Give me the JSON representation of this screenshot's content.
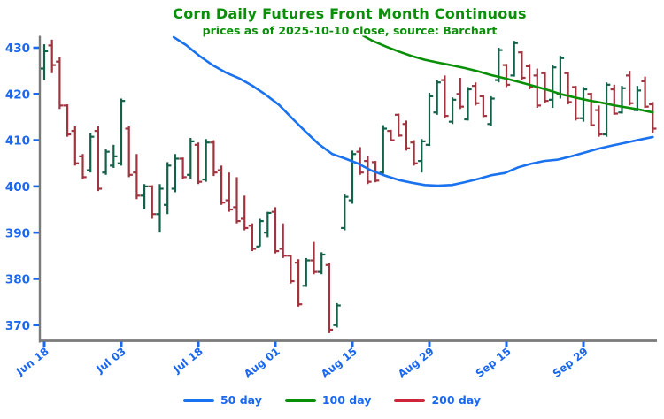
{
  "header": {
    "title": "Corn Daily Futures Front Month Continuous",
    "subtitle": "prices as of 2025-10-10 close, source: Barchart"
  },
  "chart_data": {
    "type": "ohlc-bar",
    "title": "Corn Daily Futures Front Month Continuous",
    "subtitle": "prices as of 2025-10-10 close, source: Barchart",
    "xlabel": "",
    "ylabel": "",
    "ylim": [
      366.5,
      432.8
    ],
    "grid": false,
    "legend_position": "bottom-center",
    "colors": {
      "up_bar": "#146149",
      "down_bar": "#a03540",
      "ma50": "#1a72ee",
      "ma100": "#0a9008",
      "ma200": "#d02438",
      "axis_label": "#1a68f0",
      "tick_mark": "#1a68f0",
      "spine": "#7a7a7a",
      "title": "#0a9008",
      "background": "#ffffff"
    },
    "y_ticks": [
      370,
      380,
      390,
      400,
      410,
      420,
      430
    ],
    "x_ticks": [
      {
        "label": "Jun 18",
        "index": 0
      },
      {
        "label": "Jul 03",
        "index": 10
      },
      {
        "label": "Jul 18",
        "index": 20
      },
      {
        "label": "Aug 01",
        "index": 30
      },
      {
        "label": "Aug 15",
        "index": 40
      },
      {
        "label": "Aug 29",
        "index": 50
      },
      {
        "label": "Sep 15",
        "index": 60
      },
      {
        "label": "Sep 29",
        "index": 70
      }
    ],
    "bars_format": [
      "date",
      "open",
      "high",
      "low",
      "close"
    ],
    "bars": [
      [
        "Jun 18",
        425.5,
        430.75,
        423,
        429.25
      ],
      [
        "Jun 20",
        430.5,
        431.75,
        424.5,
        426.25
      ],
      [
        "Jun 23",
        427,
        428,
        416.75,
        417.5
      ],
      [
        "Jun 24",
        417.5,
        417.75,
        410.75,
        411.25
      ],
      [
        "Jun 25",
        412,
        413,
        404.5,
        405
      ],
      [
        "Jun 26",
        406.5,
        407,
        401.5,
        402
      ],
      [
        "Jun 27",
        403.5,
        411.5,
        403,
        410.75
      ],
      [
        "Jun 30",
        412,
        413,
        399,
        399.5
      ],
      [
        "Jul 01",
        403,
        408,
        402.5,
        407.5
      ],
      [
        "Jul 02",
        404.5,
        409,
        404,
        406.5
      ],
      [
        "Jul 03",
        405,
        419,
        404.5,
        418.5
      ],
      [
        "Jul 07",
        412.5,
        413,
        402,
        402.5
      ],
      [
        "Jul 08",
        403,
        407,
        397.25,
        398
      ],
      [
        "Jul 09",
        398,
        400.5,
        395,
        400
      ],
      [
        "Jul 10",
        400,
        400.25,
        393,
        394
      ],
      [
        "Jul 11",
        394,
        400.5,
        390,
        399.5
      ],
      [
        "Jul 14",
        396,
        405.25,
        394,
        404.5
      ],
      [
        "Jul 15",
        399.5,
        407,
        398.75,
        406
      ],
      [
        "Jul 16",
        406,
        406.25,
        401.5,
        402
      ],
      [
        "Jul 17",
        402.5,
        410.5,
        401.5,
        409.75
      ],
      [
        "Jul 18",
        409,
        409.5,
        400.5,
        401
      ],
      [
        "Jul 21",
        401.5,
        410.25,
        401,
        409.5
      ],
      [
        "Jul 22",
        409.5,
        410,
        402.25,
        403
      ],
      [
        "Jul 23",
        403.5,
        404.5,
        396,
        396.5
      ],
      [
        "Jul 24",
        397,
        403,
        394.5,
        395
      ],
      [
        "Jul 25",
        395.5,
        402,
        392,
        392.5
      ],
      [
        "Jul 28",
        393,
        398,
        390.5,
        391
      ],
      [
        "Jul 29",
        391.5,
        392,
        386,
        386.5
      ],
      [
        "Jul 30",
        387,
        393,
        387,
        392.5
      ],
      [
        "Jul 31",
        390,
        394.5,
        389,
        394.25
      ],
      [
        "Aug 01",
        394.5,
        395.5,
        385.5,
        386
      ],
      [
        "Aug 04",
        386.5,
        392,
        384.5,
        385
      ],
      [
        "Aug 05",
        385,
        385.25,
        379,
        379.5
      ],
      [
        "Aug 06",
        383.5,
        384.25,
        374,
        374.5
      ],
      [
        "Aug 07",
        378.5,
        384.5,
        378.25,
        384
      ],
      [
        "Aug 08",
        384,
        388,
        381,
        381.5
      ],
      [
        "Aug 11",
        381.5,
        385.75,
        381,
        385.25
      ],
      [
        "Aug 12",
        383,
        383.5,
        368.25,
        369
      ],
      [
        "Aug 13",
        370,
        374.75,
        369.5,
        374.25
      ],
      [
        "Aug 14",
        391,
        398.25,
        390.5,
        397.75
      ],
      [
        "Aug 15",
        397,
        407.75,
        396.25,
        407
      ],
      [
        "Aug 18",
        407.5,
        408.5,
        402.5,
        403
      ],
      [
        "Aug 19",
        405.5,
        406.5,
        400.5,
        401
      ],
      [
        "Aug 20",
        405.25,
        405.5,
        400.9,
        401.25
      ],
      [
        "Aug 21",
        403,
        413.25,
        402.75,
        412.5
      ],
      [
        "Aug 22",
        412,
        412.25,
        409.75,
        410
      ],
      [
        "Aug 25",
        415.5,
        415.75,
        410.75,
        411
      ],
      [
        "Aug 26",
        413.5,
        414.25,
        407.75,
        408.25
      ],
      [
        "Aug 27",
        409.5,
        410,
        404.5,
        405
      ],
      [
        "Aug 28",
        405.5,
        410.25,
        403,
        409.75
      ],
      [
        "Aug 29",
        409,
        420.25,
        408.75,
        419.5
      ],
      [
        "Sep 02",
        416,
        423,
        415.5,
        422.5
      ],
      [
        "Sep 03",
        423,
        424,
        414.75,
        415.25
      ],
      [
        "Sep 04",
        414,
        419.25,
        413.5,
        418.75
      ],
      [
        "Sep 05",
        420,
        423.5,
        416.75,
        417.25
      ],
      [
        "Sep 08",
        414.5,
        421.5,
        414.25,
        421
      ],
      [
        "Sep 09",
        421.75,
        422.5,
        417.5,
        418
      ],
      [
        "Sep 10",
        419.5,
        419.75,
        415,
        415.25
      ],
      [
        "Sep 11",
        413.5,
        419.5,
        413,
        419
      ],
      [
        "Sep 12",
        423,
        430,
        422.5,
        429.5
      ],
      [
        "Sep 15",
        426.25,
        426.5,
        421.5,
        422
      ],
      [
        "Sep 16",
        424,
        431.5,
        423.75,
        431
      ],
      [
        "Sep 17",
        429,
        429.25,
        423,
        423.5
      ],
      [
        "Sep 18",
        426,
        426.5,
        421,
        421.5
      ],
      [
        "Sep 19",
        424,
        425.5,
        417,
        417.5
      ],
      [
        "Sep 22",
        424.5,
        424.75,
        418,
        418.5
      ],
      [
        "Sep 23",
        418.75,
        426.25,
        417,
        425.75
      ],
      [
        "Sep 24",
        420,
        428.25,
        419,
        427.75
      ],
      [
        "Sep 25",
        424.5,
        424.75,
        417.75,
        418.25
      ],
      [
        "Sep 26",
        421.5,
        421.75,
        414.25,
        414.75
      ],
      [
        "Sep 29",
        414.75,
        421.5,
        414,
        421
      ],
      [
        "Sep 30",
        420,
        420.25,
        413,
        413.25
      ],
      [
        "Oct 01",
        416.5,
        417.5,
        410.75,
        411.25
      ],
      [
        "Oct 02",
        411.25,
        422.5,
        410.75,
        422
      ],
      [
        "Oct 03",
        421,
        422,
        415.5,
        415.75
      ],
      [
        "Oct 06",
        416,
        421.75,
        415.75,
        421.25
      ],
      [
        "Oct 07",
        424,
        425,
        417.5,
        418
      ],
      [
        "Oct 08",
        416.5,
        421.75,
        416.25,
        420.75
      ],
      [
        "Oct 09",
        422.75,
        423.75,
        417,
        417.25
      ],
      [
        "Oct 10",
        417.75,
        418.25,
        411.5,
        412.5
      ]
    ],
    "series": [
      {
        "name": "50 day",
        "color": "#1a72ee",
        "points_format": [
          "bar_index",
          "price"
        ],
        "points": [
          [
            16.8,
            432.3
          ],
          [
            18.4,
            430.6
          ],
          [
            20.1,
            428.3
          ],
          [
            21.8,
            426.3
          ],
          [
            23.6,
            424.6
          ],
          [
            25.3,
            423.4
          ],
          [
            27.0,
            421.8
          ],
          [
            28.7,
            419.9
          ],
          [
            30.5,
            417.6
          ],
          [
            32.2,
            414.7
          ],
          [
            33.9,
            411.9
          ],
          [
            35.6,
            409.2
          ],
          [
            37.4,
            407.0
          ],
          [
            39.1,
            406.0
          ],
          [
            40.8,
            404.9
          ],
          [
            42.5,
            403.4
          ],
          [
            44.3,
            402.3
          ],
          [
            46.0,
            401.4
          ],
          [
            47.7,
            400.8
          ],
          [
            49.4,
            400.3
          ],
          [
            51.1,
            400.15
          ],
          [
            52.9,
            400.3
          ],
          [
            54.6,
            400.9
          ],
          [
            56.3,
            401.6
          ],
          [
            58.0,
            402.4
          ],
          [
            59.8,
            402.9
          ],
          [
            61.5,
            404.1
          ],
          [
            63.2,
            404.9
          ],
          [
            64.9,
            405.5
          ],
          [
            66.7,
            405.8
          ],
          [
            68.4,
            406.5
          ],
          [
            70.1,
            407.3
          ],
          [
            71.8,
            408.1
          ],
          [
            73.6,
            408.8
          ],
          [
            75.3,
            409.4
          ],
          [
            77.0,
            410.0
          ],
          [
            79.0,
            410.7
          ]
        ]
      },
      {
        "name": "100 day",
        "color": "#0a9008",
        "points_format": [
          "bar_index",
          "price"
        ],
        "points": [
          [
            41.4,
            432.6
          ],
          [
            42.5,
            431.6
          ],
          [
            44.3,
            430.3
          ],
          [
            46.0,
            429.2
          ],
          [
            47.7,
            428.2
          ],
          [
            49.4,
            427.4
          ],
          [
            51.1,
            426.8
          ],
          [
            52.9,
            426.2
          ],
          [
            54.6,
            425.6
          ],
          [
            56.3,
            424.9
          ],
          [
            58.0,
            424.1
          ],
          [
            60.0,
            423.3
          ],
          [
            62.1,
            422.4
          ],
          [
            63.8,
            421.6
          ],
          [
            65.5,
            420.8
          ],
          [
            67.2,
            419.9
          ],
          [
            69.0,
            419.2
          ],
          [
            70.7,
            418.6
          ],
          [
            72.4,
            418.1
          ],
          [
            74.1,
            417.5
          ],
          [
            75.9,
            417.0
          ],
          [
            77.6,
            416.5
          ],
          [
            79.0,
            416.0
          ]
        ]
      },
      {
        "name": "200 day",
        "color": "#d02438",
        "points_format": [
          "bar_index",
          "price"
        ],
        "points": [],
        "note": "not visible within plotted price range"
      }
    ],
    "legend": {
      "items": [
        {
          "label": "50 day",
          "color": "#1a72ee"
        },
        {
          "label": "100 day",
          "color": "#0a9008"
        },
        {
          "label": "200 day",
          "color": "#d02438"
        }
      ]
    }
  }
}
